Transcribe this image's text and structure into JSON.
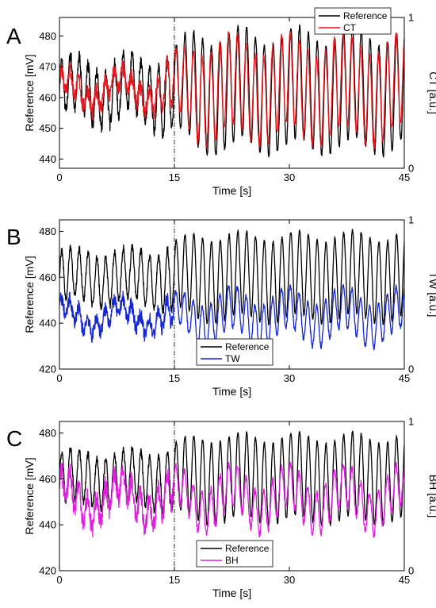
{
  "colors": {
    "reference": "#000000",
    "CT": "#e8161c",
    "TW": "#1426d6",
    "BH": "#e31ee3"
  },
  "chart_data": [
    {
      "type": "line",
      "panel_label": "A",
      "xlabel": "Time [s]",
      "ylabel": "Reference [mV]",
      "y2label": "CT [a.u.]",
      "xlim": [
        0,
        45
      ],
      "ylim": [
        437,
        486
      ],
      "y2lim": [
        0,
        1
      ],
      "xticks": [
        "0",
        "15",
        "30",
        "45"
      ],
      "yticks": [
        "440",
        "450",
        "460",
        "470",
        "480"
      ],
      "y2ticks": [
        "0",
        "1"
      ],
      "marker_x": 15,
      "legend_position": "top-right",
      "series": [
        {
          "name": "Reference",
          "axis": "left",
          "color_key": "reference",
          "amp_start": 9,
          "amp_end": 18,
          "base": 462,
          "period": 1.15,
          "wobble": 3.2
        },
        {
          "name": "CT",
          "axis": "right",
          "color_key": "CT",
          "amp_start": 0.07,
          "amp_end": 0.3,
          "base": 0.52,
          "period": 1.15,
          "wobble": 0.08
        }
      ]
    },
    {
      "type": "line",
      "panel_label": "B",
      "xlabel": "Time [s]",
      "ylabel": "Reference [mV]",
      "y2label": "TW [a.u.]",
      "xlim": [
        0,
        45
      ],
      "ylim": [
        420,
        485
      ],
      "y2lim": [
        0,
        1
      ],
      "xticks": [
        "0",
        "15",
        "30",
        "45"
      ],
      "yticks": [
        "420",
        "440",
        "460",
        "480"
      ],
      "y2ticks": [
        "0",
        "1"
      ],
      "marker_x": 15,
      "legend_position": "bottom-center",
      "series": [
        {
          "name": "Reference",
          "axis": "left",
          "color_key": "reference",
          "amp_start": 11,
          "amp_end": 18,
          "base": 460,
          "period": 1.15,
          "wobble": 2.5
        },
        {
          "name": "TW",
          "axis": "right",
          "color_key": "TW",
          "amp_start": 0.06,
          "amp_end": 0.14,
          "base": 0.35,
          "period": 1.15,
          "wobble": 0.07
        }
      ]
    },
    {
      "type": "line",
      "panel_label": "C",
      "xlabel": "Time [s]",
      "ylabel": "Reference [mV]",
      "y2label": "BH [a.u.]",
      "xlim": [
        0,
        45
      ],
      "ylim": [
        420,
        485
      ],
      "y2lim": [
        0,
        1
      ],
      "xticks": [
        "0",
        "15",
        "30",
        "45"
      ],
      "yticks": [
        "420",
        "440",
        "460",
        "480"
      ],
      "y2ticks": [
        "0",
        "1"
      ],
      "marker_x": 15,
      "legend_position": "bottom-center",
      "series": [
        {
          "name": "Reference",
          "axis": "left",
          "color_key": "reference",
          "amp_start": 11,
          "amp_end": 18,
          "base": 460,
          "period": 1.15,
          "wobble": 2.5
        },
        {
          "name": "BH",
          "axis": "right",
          "color_key": "BH",
          "amp_start": 0.1,
          "amp_end": 0.14,
          "base": 0.48,
          "period": 1.15,
          "wobble": 0.1
        }
      ]
    }
  ]
}
